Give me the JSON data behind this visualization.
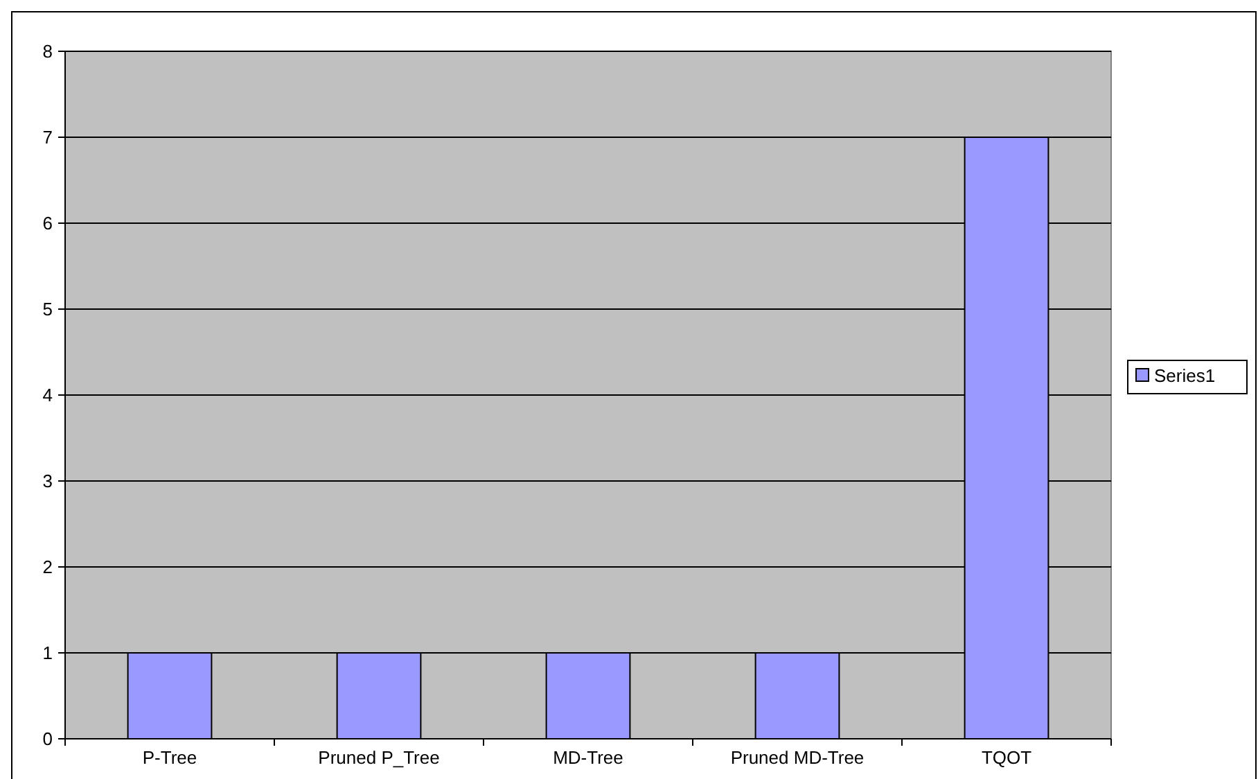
{
  "chart_data": {
    "type": "bar",
    "categories": [
      "P-Tree",
      "Pruned P_Tree",
      "MD-Tree",
      "Pruned MD-Tree",
      "TQOT"
    ],
    "series": [
      {
        "name": "Series1",
        "color": "#9999ff",
        "values": [
          1,
          1,
          1,
          1,
          7
        ]
      }
    ],
    "ylim": [
      0,
      8
    ],
    "yticks": [
      0,
      1,
      2,
      3,
      4,
      5,
      6,
      7,
      8
    ],
    "grid": "y",
    "legend": "right"
  }
}
